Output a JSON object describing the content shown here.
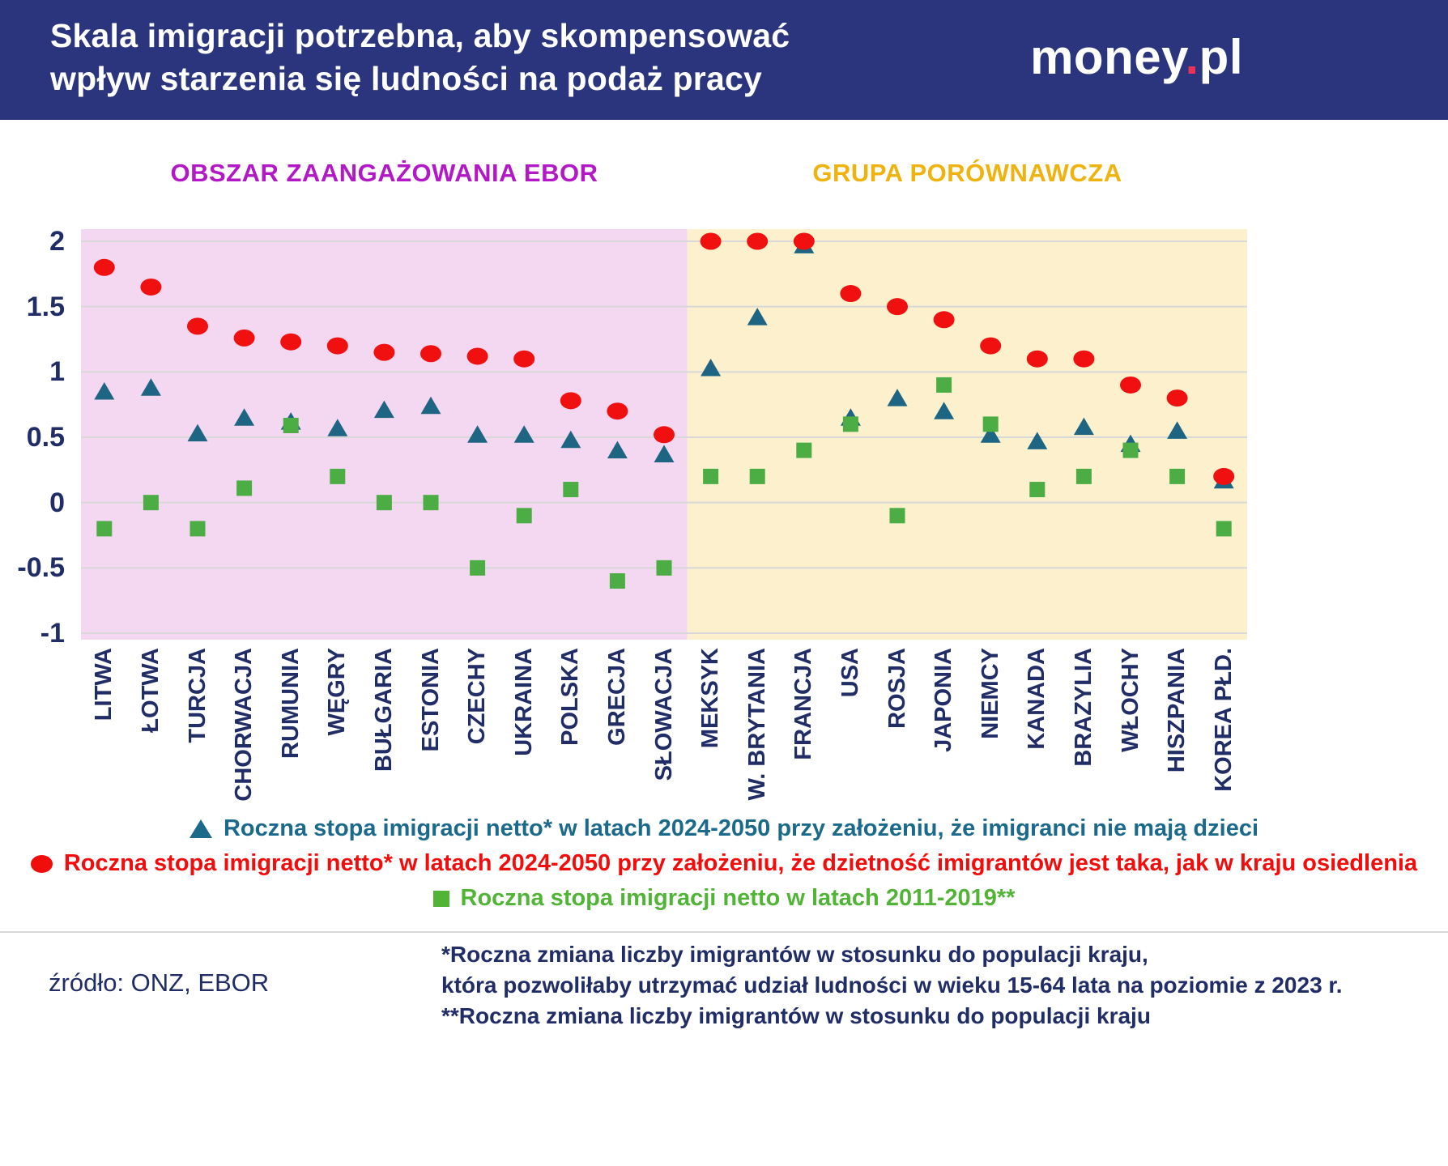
{
  "header": {
    "title_line1": "Skala imigracji potrzebna, aby skompensować",
    "title_line2": "wpływ starzenia się ludności na podaż pracy",
    "logo": {
      "part1": "money",
      "dot": ".",
      "part2": "pl"
    }
  },
  "regions": {
    "left_label": "OBSZAR ZAANGAŻOWANIA EBOR",
    "right_label": "GRUPA PORÓWNAWCZA"
  },
  "chart_data": {
    "type": "scatter",
    "title": "Skala imigracji potrzebna, aby skompensować wpływ starzenia się ludności na podaż pracy",
    "xlabel": "",
    "ylabel": "",
    "ylim": [
      -1,
      2
    ],
    "y_ticks": [
      "2",
      "1.5",
      "1",
      "0.5",
      "0",
      "-0.5",
      "-1"
    ],
    "grid": true,
    "legend_position": "bottom",
    "x_tick_rotation": 90,
    "region_split_index": 13,
    "categories": [
      "LITWA",
      "ŁOTWA",
      "TURCJA",
      "CHORWACJA",
      "RUMUNIA",
      "WĘGRY",
      "BUŁGARIA",
      "ESTONIA",
      "CZECHY",
      "UKRAINA",
      "POLSKA",
      "GRECJA",
      "SŁOWACJA",
      "MEKSYK",
      "W. BRYTANIA",
      "FRANCJA",
      "USA",
      "ROSJA",
      "JAPONIA",
      "NIEMCY",
      "KANADA",
      "BRAZYLIA",
      "WŁOCHY",
      "HISZPANIA",
      "KOREA PŁD."
    ],
    "series": [
      {
        "name": "Roczna stopa imigracji netto* w latach 2024-2050 przy założeniu, że imigranci nie mają dzieci",
        "marker": "triangle",
        "color": "#1e6583",
        "values": [
          0.85,
          0.88,
          0.53,
          0.65,
          0.62,
          0.57,
          0.71,
          0.74,
          0.52,
          0.52,
          0.48,
          0.4,
          0.37,
          1.03,
          1.42,
          1.97,
          0.65,
          0.8,
          0.7,
          0.52,
          0.47,
          0.58,
          0.45,
          0.55,
          0.17
        ]
      },
      {
        "name": "Roczna stopa imigracji netto* w latach 2024-2050 przy założeniu, że dzietność imigrantów jest taka, jak w kraju osiedlenia",
        "marker": "circle",
        "color": "#f01010",
        "values": [
          1.8,
          1.65,
          1.35,
          1.26,
          1.23,
          1.2,
          1.15,
          1.14,
          1.12,
          1.1,
          0.78,
          0.7,
          0.52,
          2.0,
          2.0,
          2.0,
          1.6,
          1.5,
          1.4,
          1.2,
          1.1,
          1.1,
          0.9,
          0.8,
          0.2
        ]
      },
      {
        "name": "Roczna stopa imigracji netto w latach 2011-2019**",
        "marker": "square",
        "color": "#4cad44",
        "values": [
          -0.2,
          0.0,
          -0.2,
          0.11,
          0.59,
          0.2,
          0.0,
          0.0,
          -0.5,
          -0.1,
          0.1,
          -0.6,
          -0.5,
          0.2,
          0.2,
          0.4,
          0.6,
          -0.1,
          0.9,
          0.6,
          0.1,
          0.2,
          0.4,
          0.2,
          -0.2
        ]
      }
    ]
  },
  "legend": [
    {
      "marker": "triangle",
      "color": "#1b6a8b",
      "text": "Roczna stopa imigracji netto* w latach 2024-2050 przy założeniu, że imigranci nie mają dzieci"
    },
    {
      "marker": "circle",
      "color": "#f20d0d",
      "text": "Roczna stopa imigracji netto* w latach 2024-2050 przy założeniu, że dzietność imigrantów jest taka, jak w kraju osiedlenia"
    },
    {
      "marker": "square",
      "color": "#52b437",
      "text": "Roczna stopa imigracji netto w latach 2011-2019**"
    }
  ],
  "footer": {
    "source": "źródło: ONZ, EBOR",
    "note1": "*Roczna zmiana liczby imigrantów w stosunku do populacji kraju,",
    "note2": "która pozwoliłaby utrzymać udział ludności w wieku 15-64 lata na poziomie z 2023 r.",
    "note3": "**Roczna zmiana liczby imigrantów w stosunku do populacji kraju"
  },
  "colors": {
    "header_bg": "#2a357e",
    "navy": "#212d66",
    "magenta": "#b318c6",
    "gold": "#efb30f",
    "purple_bg": "#f4d8f2",
    "yellow_bg": "#fcf0cd",
    "red": "#f01010",
    "teal": "#1e6583",
    "green": "#4cad44",
    "grid": "#d8d8d8",
    "logo_dot": "#ea3356"
  }
}
